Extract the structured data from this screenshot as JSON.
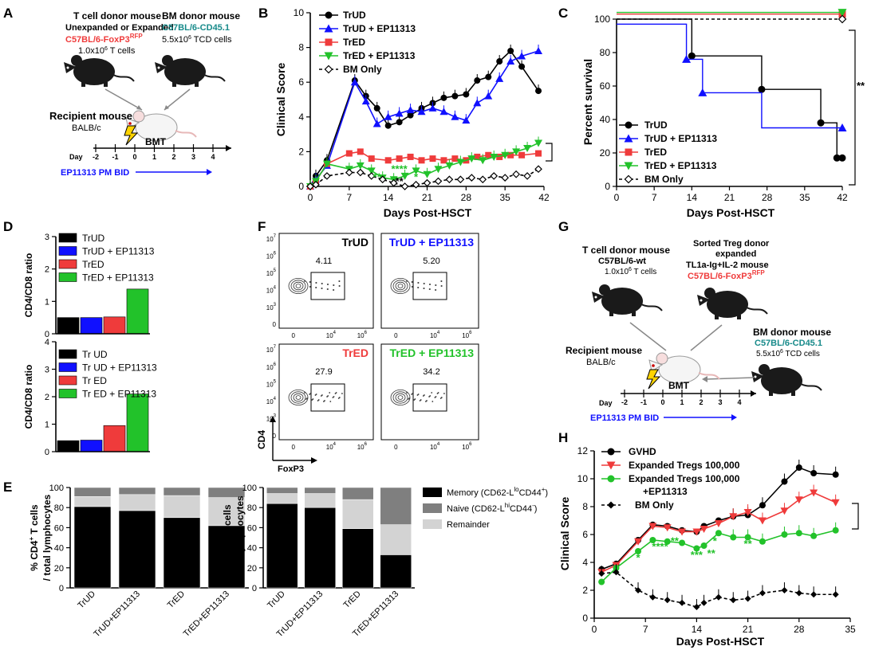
{
  "panel_letters": [
    "A",
    "B",
    "C",
    "D",
    "E",
    "F",
    "G",
    "H"
  ],
  "colors": {
    "black": "#000000",
    "blue": "#1010ff",
    "red": "#ef3b3b",
    "green": "#22c22a",
    "teal": "#178a8a",
    "gray_dark": "#7f7f7f",
    "gray_light": "#d3d3d3",
    "mouse": "#1a1a1a"
  },
  "panelA": {
    "tcell_title": "T cell donor mouse",
    "tcell_sub": "Unexpanded or Expanded",
    "tcell_strain": "C57BL/6-FoxP3",
    "tcell_strain_sup": "RFP",
    "tcell_dose": "1.0x10",
    "tcell_dose_sup": "6",
    "tcell_dose_rest": " T cells",
    "bm_title": "BM donor mouse",
    "bm_strain": "C57BL/6-CD45.1",
    "bm_dose": "5.5x10",
    "bm_dose_sup": "6",
    "bm_dose_rest": " TCD cells",
    "recipient_title": "Recipient mouse",
    "recipient_strain": "BALB/c",
    "bmt_label": "BMT",
    "day_label": "Day",
    "days": [
      "-2",
      "-1",
      "0",
      "1",
      "2",
      "3",
      "4"
    ],
    "drug_label": "EP11313  PM  BID"
  },
  "panelG": {
    "tcell_title": "T cell donor mouse",
    "tcell_strain": "C57BL/6-wt",
    "tcell_dose": "1.0x10",
    "tcell_dose_sup": "6",
    "tcell_dose_rest": " T cells",
    "treg_title": "Sorted Treg donor",
    "treg_sub": "expanded",
    "treg_treat": "TL1a-Ig+IL-2 mouse",
    "treg_strain": "C57BL/6-FoxP3",
    "treg_strain_sup": "RFP",
    "bm_title": "BM donor mouse",
    "bm_strain": "C57BL/6-CD45.1",
    "bm_dose": "5.5x10",
    "bm_dose_sup": "6",
    "bm_dose_rest": " TCD cells",
    "recipient_title": "Recipient mouse",
    "recipient_strain": "BALB/c",
    "bmt_label": "BMT",
    "day_label": "Day",
    "days": [
      "-2",
      "-1",
      "0",
      "1",
      "2",
      "3",
      "4"
    ],
    "drug_label": "EP11313  PM  BID"
  },
  "panelF": {
    "titles": [
      "TrUD",
      "TrUD + EP11313",
      "TrED",
      "TrED + EP11313"
    ],
    "values": [
      "4.11",
      "5.20",
      "27.9",
      "34.2"
    ],
    "y_label": "CD4",
    "x_label": "FoxP3",
    "y_ticks": [
      "10",
      "10",
      "10",
      "10",
      "10",
      "0"
    ],
    "y_tick_exps": [
      "7",
      "6",
      "5",
      "4",
      "3",
      ""
    ],
    "x_ticks": [
      "0",
      "10",
      "10"
    ],
    "x_tick_exps": [
      "",
      "4",
      "6"
    ]
  },
  "chart_data": [
    {
      "panel": "B",
      "type": "line",
      "xlabel": "Days Post-HSCT",
      "ylabel": "Clinical Score",
      "xlim": [
        0,
        42
      ],
      "ylim": [
        0,
        10
      ],
      "xticks": [
        0,
        7,
        14,
        21,
        28,
        35,
        42
      ],
      "yticks": [
        0,
        2,
        4,
        6,
        8,
        10
      ],
      "legend": "top-left",
      "series": [
        {
          "name": "TrUD",
          "color": "#000000",
          "marker": "circle",
          "dash": false,
          "x": [
            0,
            1,
            3,
            8,
            10,
            12,
            14,
            16,
            18,
            20,
            22,
            24,
            26,
            28,
            30,
            32,
            34,
            36,
            38,
            41
          ],
          "y": [
            0,
            0.6,
            1.5,
            6.1,
            5.2,
            4.5,
            3.5,
            3.7,
            4.1,
            4.5,
            4.8,
            5.1,
            5.2,
            5.3,
            6.1,
            6.3,
            7.2,
            7.8,
            6.9,
            5.5
          ]
        },
        {
          "name": "TrUD + EP11313",
          "color": "#1010ff",
          "marker": "triangle-up",
          "dash": false,
          "x": [
            0,
            1,
            3,
            8,
            10,
            12,
            14,
            16,
            18,
            20,
            22,
            24,
            26,
            28,
            30,
            32,
            34,
            36,
            38,
            41
          ],
          "y": [
            0,
            0.4,
            1.2,
            6.0,
            4.9,
            3.6,
            4.0,
            4.2,
            4.4,
            4.3,
            4.5,
            4.3,
            4.0,
            3.8,
            4.8,
            5.2,
            6.2,
            7.2,
            7.5,
            7.8
          ]
        },
        {
          "name": "TrED",
          "color": "#ef3b3b",
          "marker": "square",
          "dash": false,
          "x": [
            0,
            1,
            3,
            7,
            9,
            11,
            14,
            16,
            18,
            20,
            22,
            24,
            26,
            28,
            30,
            32,
            34,
            36,
            38,
            41
          ],
          "y": [
            0,
            0.3,
            1.3,
            1.9,
            2.0,
            1.6,
            1.5,
            1.6,
            1.7,
            1.5,
            1.6,
            1.5,
            1.6,
            1.5,
            1.7,
            1.8,
            1.7,
            1.8,
            1.8,
            1.9
          ]
        },
        {
          "name": "TrED + EP11313",
          "color": "#22c22a",
          "marker": "triangle-down",
          "dash": false,
          "x": [
            0,
            1,
            3,
            7,
            9,
            11,
            13,
            15,
            17,
            19,
            21,
            23,
            25,
            27,
            29,
            31,
            33,
            35,
            37,
            39,
            41
          ],
          "y": [
            0,
            0.3,
            1.3,
            1.0,
            1.2,
            0.9,
            0.5,
            0.4,
            0.6,
            0.9,
            0.7,
            1.0,
            1.2,
            1.4,
            1.6,
            1.5,
            1.7,
            1.8,
            2.0,
            2.2,
            2.5
          ]
        },
        {
          "name": "BM Only",
          "color": "#000000",
          "marker": "diamond-open",
          "dash": true,
          "x": [
            0,
            1,
            3,
            7,
            9,
            11,
            13,
            15,
            17,
            19,
            21,
            23,
            25,
            27,
            29,
            31,
            33,
            35,
            37,
            39,
            41
          ],
          "y": [
            0,
            0.1,
            0.6,
            0.8,
            0.8,
            0.6,
            0.4,
            0.2,
            0.0,
            0.1,
            0.2,
            0.3,
            0.4,
            0.4,
            0.5,
            0.4,
            0.6,
            0.5,
            0.7,
            0.6,
            1.0
          ]
        }
      ],
      "annotations": [
        {
          "text": "**",
          "color": "#000000",
          "x": 16,
          "y": 0.1
        },
        {
          "text": "**",
          "color": "#22c22a",
          "x": 12,
          "y": 0.35
        },
        {
          "text": "****",
          "color": "#22c22a",
          "x": 16,
          "y": 0.8
        },
        {
          "text": "*",
          "color": "#22c22a",
          "x": 19,
          "y": 0.35
        }
      ]
    },
    {
      "panel": "C",
      "type": "line",
      "subtype": "survival-step",
      "xlabel": "Days Post-HSCT",
      "ylabel": "Percent survival",
      "xlim": [
        0,
        42
      ],
      "ylim": [
        0,
        100
      ],
      "xticks": [
        0,
        7,
        14,
        21,
        28,
        35,
        42
      ],
      "yticks": [
        0,
        20,
        40,
        60,
        80,
        100
      ],
      "legend": "bottom-left",
      "significance": "**",
      "series": [
        {
          "name": "TrUD",
          "color": "#000000",
          "marker": "circle",
          "dash": false,
          "steps": [
            [
              0,
              100
            ],
            [
              14,
              100
            ],
            [
              14,
              78
            ],
            [
              27,
              78
            ],
            [
              27,
              58
            ],
            [
              38,
              58
            ],
            [
              38,
              38
            ],
            [
              41,
              38
            ],
            [
              41,
              17
            ],
            [
              42,
              17
            ]
          ],
          "markers": [
            [
              14,
              78
            ],
            [
              27,
              58
            ],
            [
              38,
              38
            ],
            [
              41,
              17
            ],
            [
              42,
              17
            ]
          ]
        },
        {
          "name": "TrUD + EP11313",
          "color": "#1010ff",
          "marker": "triangle-up",
          "dash": false,
          "steps": [
            [
              0,
              97
            ],
            [
              13,
              97
            ],
            [
              13,
              76
            ],
            [
              16,
              76
            ],
            [
              16,
              56
            ],
            [
              27,
              56
            ],
            [
              27,
              35
            ],
            [
              42,
              35
            ]
          ],
          "markers": [
            [
              13,
              76
            ],
            [
              16,
              56
            ],
            [
              42,
              35
            ]
          ]
        },
        {
          "name": "TrED",
          "color": "#ef3b3b",
          "marker": "square",
          "dash": false,
          "steps": [
            [
              0,
              103
            ],
            [
              42,
              103
            ]
          ],
          "markers": [
            [
              42,
              103
            ]
          ]
        },
        {
          "name": "TrED + EP11313",
          "color": "#22c22a",
          "marker": "triangle-down",
          "dash": false,
          "steps": [
            [
              0,
              104
            ],
            [
              42,
              104
            ]
          ],
          "markers": [
            [
              42,
              104
            ]
          ]
        },
        {
          "name": "BM Only",
          "color": "#000000",
          "marker": "diamond-open",
          "dash": true,
          "steps": [
            [
              0,
              100
            ],
            [
              42,
              100
            ]
          ],
          "markers": [
            [
              42,
              100
            ]
          ]
        }
      ]
    },
    {
      "panel": "D-top",
      "type": "bar",
      "ylabel": "CD4/CD8  ratio",
      "ylim": [
        0,
        3
      ],
      "yticks": [
        0,
        1,
        2,
        3
      ],
      "categories": [
        "TrUD",
        "TrUD + EP11313",
        "TrED",
        "TrED + EP11313"
      ],
      "values": [
        0.5,
        0.5,
        0.52,
        1.38
      ],
      "colors": [
        "#000000",
        "#1010ff",
        "#ef3b3b",
        "#22c22a"
      ]
    },
    {
      "panel": "D-bottom",
      "type": "bar",
      "ylabel": "CD4/CD8 ratio",
      "ylim": [
        0,
        4
      ],
      "yticks": [
        0,
        1,
        2,
        3,
        4
      ],
      "categories": [
        "Tr UD",
        "Tr UD + EP11313",
        "Tr ED",
        "Tr ED + EP11313"
      ],
      "values": [
        0.4,
        0.42,
        0.95,
        2.1
      ],
      "colors": [
        "#000000",
        "#1010ff",
        "#ef3b3b",
        "#22c22a"
      ]
    },
    {
      "panel": "E-left",
      "type": "bar",
      "subtype": "stacked",
      "ylabel_main": "% CD4",
      "ylabel_sup": "+",
      "ylabel_rest": " T cells",
      "ylabel2": "/ total lymphocytes",
      "ylim": [
        0,
        100
      ],
      "yticks": [
        0,
        20,
        40,
        60,
        80,
        100
      ],
      "categories": [
        "TrUD",
        "TrUD+EP11313",
        "TrED",
        "TrED+EP11313"
      ],
      "series": [
        {
          "name": "Memory",
          "values": [
            81,
            77,
            70,
            62
          ]
        },
        {
          "name": "Remainder",
          "values": [
            10,
            16,
            22,
            28
          ]
        },
        {
          "name": "Naive",
          "values": [
            9,
            7,
            8,
            10
          ]
        }
      ]
    },
    {
      "panel": "E-right",
      "type": "bar",
      "subtype": "stacked",
      "ylabel_main": "% CD4",
      "ylabel_sup": "+",
      "ylabel_rest": " T cells",
      "ylabel2": "/total lymphocytes",
      "ylim": [
        0,
        100
      ],
      "yticks": [
        0,
        20,
        40,
        60,
        80,
        100
      ],
      "categories": [
        "TrUD",
        "TrUD+EP11313",
        "TrED",
        "TrED+EP11313"
      ],
      "series": [
        {
          "name": "Memory",
          "values": [
            84,
            80,
            59,
            33
          ]
        },
        {
          "name": "Remainder",
          "values": [
            10,
            14,
            29,
            30
          ]
        },
        {
          "name": "Naive",
          "values": [
            6,
            6,
            12,
            37
          ]
        }
      ],
      "legend_items": [
        {
          "label": "Memory (CD62-L",
          "sup": "lo",
          "rest": "CD44",
          "sup2": "+",
          "end": ")",
          "color": "#000000"
        },
        {
          "label": "Naive (CD62-L",
          "sup": "hi",
          "rest": "CD44",
          "sup2": "-",
          "end": ")",
          "color": "#7f7f7f"
        },
        {
          "label": "Remainder",
          "sup": "",
          "rest": "",
          "sup2": "",
          "end": "",
          "color": "#d3d3d3"
        }
      ]
    },
    {
      "panel": "H",
      "type": "line",
      "xlabel": "Days Post-HSCT",
      "ylabel": "Clinical Score",
      "xlim": [
        0,
        35
      ],
      "ylim": [
        0,
        12
      ],
      "xticks": [
        0,
        7,
        14,
        21,
        28,
        35
      ],
      "yticks": [
        0,
        2,
        4,
        6,
        8,
        10,
        12
      ],
      "legend": "top-left",
      "series": [
        {
          "name": "GVHD",
          "color": "#000000",
          "marker": "circle",
          "dash": false,
          "x": [
            1,
            3,
            6,
            8,
            10,
            12,
            14,
            15,
            17,
            19,
            21,
            23,
            26,
            28,
            30,
            33
          ],
          "y": [
            3.5,
            3.9,
            5.6,
            6.7,
            6.6,
            6.3,
            6.2,
            6.6,
            7.0,
            7.3,
            7.4,
            8.1,
            9.8,
            10.8,
            10.4,
            10.3
          ]
        },
        {
          "name": "Expanded Tregs 100,000",
          "color": "#ef3b3b",
          "marker": "triangle-down",
          "dash": false,
          "x": [
            1,
            3,
            6,
            8,
            10,
            12,
            14,
            15,
            17,
            19,
            21,
            23,
            26,
            28,
            30,
            33
          ],
          "y": [
            3.3,
            3.8,
            5.5,
            6.6,
            6.5,
            6.2,
            6.2,
            6.4,
            6.8,
            7.3,
            7.6,
            7.0,
            7.7,
            8.5,
            9.0,
            8.3
          ]
        },
        {
          "name": "Expanded Tregs 100,000 +EP11313",
          "color": "#22c22a",
          "marker": "circle",
          "dash": false,
          "x": [
            1,
            3,
            6,
            8,
            10,
            12,
            14,
            15,
            17,
            19,
            21,
            23,
            26,
            28,
            30,
            33
          ],
          "y": [
            2.6,
            3.6,
            4.8,
            5.6,
            5.5,
            5.4,
            5.0,
            5.2,
            6.1,
            5.8,
            5.8,
            5.5,
            6.0,
            6.1,
            5.9,
            6.3
          ]
        },
        {
          "name": "BM Only",
          "color": "#000000",
          "marker": "diamond",
          "dash": true,
          "x": [
            1,
            3,
            6,
            8,
            10,
            12,
            14,
            15,
            17,
            19,
            21,
            23,
            26,
            28,
            30,
            33
          ],
          "y": [
            3.2,
            3.3,
            2.0,
            1.5,
            1.3,
            1.1,
            0.8,
            1.1,
            1.5,
            1.3,
            1.4,
            1.8,
            2.0,
            1.8,
            1.7,
            1.7
          ]
        }
      ],
      "annotations": [
        {
          "text": "*",
          "color": "#22c22a",
          "x": 6,
          "y": 4.1
        },
        {
          "text": "****",
          "color": "#22c22a",
          "x": 9,
          "y": 4.9
        },
        {
          "text": "**",
          "color": "#22c22a",
          "x": 11,
          "y": 5.3
        },
        {
          "text": "***",
          "color": "#22c22a",
          "x": 14,
          "y": 4.3
        },
        {
          "text": "**",
          "color": "#22c22a",
          "x": 16,
          "y": 4.4
        },
        {
          "text": "*",
          "color": "#22c22a",
          "x": 16.5,
          "y": 5.3
        },
        {
          "text": "**",
          "color": "#22c22a",
          "x": 21,
          "y": 5.1
        }
      ]
    }
  ]
}
